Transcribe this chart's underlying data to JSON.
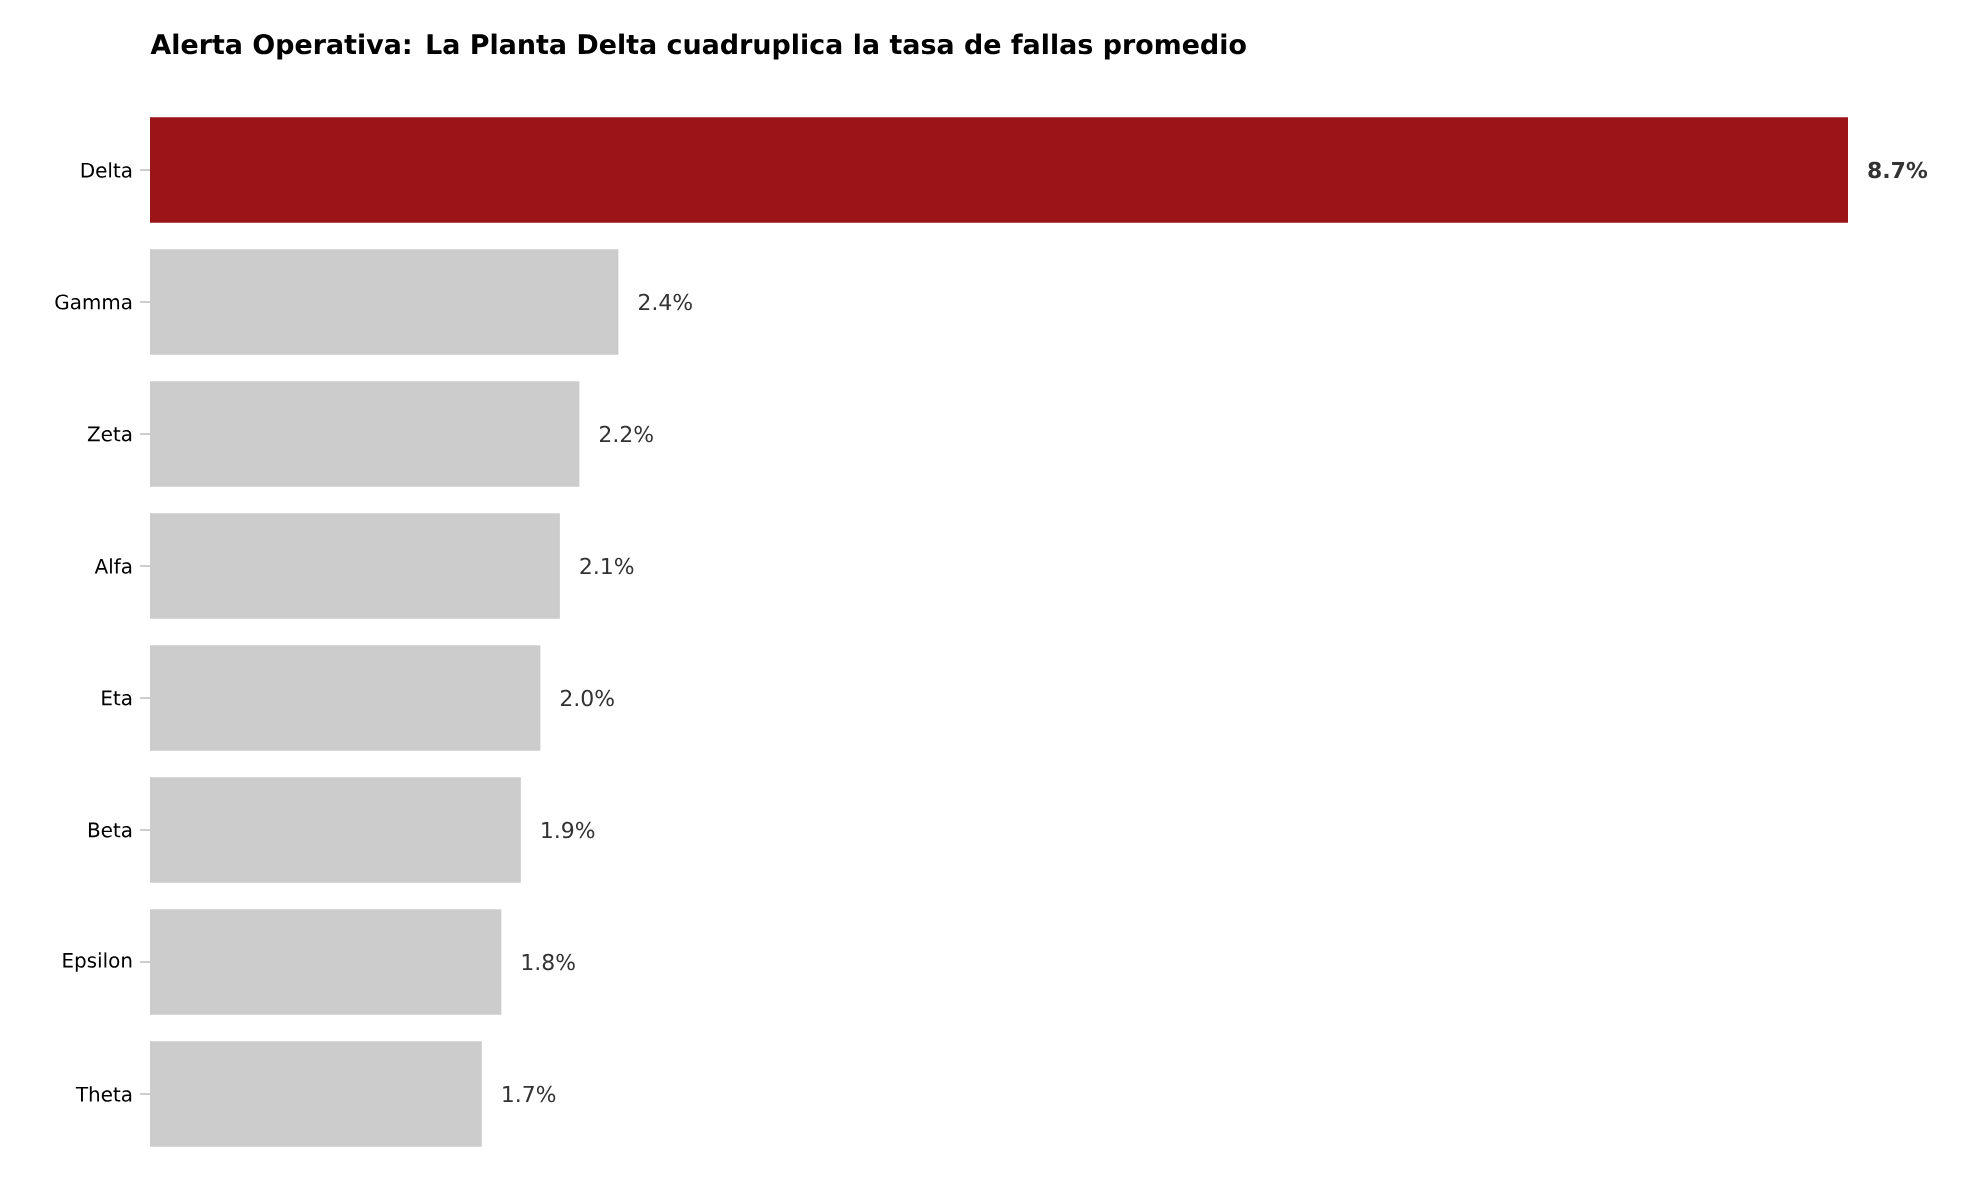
{
  "chart_data": {
    "type": "bar",
    "orientation": "horizontal",
    "title": "Alerta Operativa: La Planta Delta cuadruplica la tasa de fallas promedio",
    "categories": [
      "Delta",
      "Gamma",
      "Zeta",
      "Alfa",
      "Eta",
      "Beta",
      "Epsilon",
      "Theta"
    ],
    "values": [
      8.7,
      2.4,
      2.2,
      2.1,
      2.0,
      1.9,
      1.8,
      1.7
    ],
    "colors": [
      "#9b1518",
      "#cccccc",
      "#cccccc",
      "#cccccc",
      "#cccccc",
      "#cccccc",
      "#cccccc",
      "#cccccc"
    ],
    "value_labels": [
      "**8.7%**",
      "2.4%",
      "2.2%",
      "2.1%",
      "2.0%",
      "1.9%",
      "1.8%",
      "1.7%"
    ]
  }
}
